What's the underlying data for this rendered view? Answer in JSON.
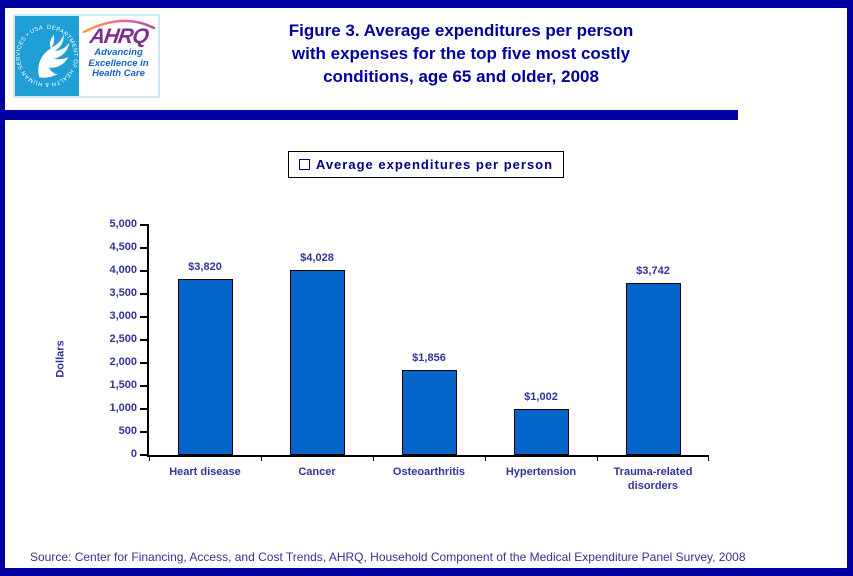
{
  "colors": {
    "frame_navy": "#0000a0",
    "title_blue": "#0000a0",
    "bar_blue": "#0565c8",
    "axis_text_navy": "#333399",
    "legend_text_navy": "#000080",
    "hhs_blue": "#1f9fd5",
    "ahrq_purple": "#7d2e8d",
    "ahrq_tagline_blue": "#1464c8"
  },
  "header": {
    "title_lines": [
      "Figure 3. Average expenditures per person",
      "with expenses for the top five most costly",
      "conditions, age 65 and older, 2008"
    ],
    "logo": {
      "hhs_ring_text": "DEPARTMENT OF HEALTH & HUMAN SERVICES • USA",
      "ahrq_wordmark": "AHRQ",
      "tagline_lines": [
        "Advancing",
        "Excellence in",
        "Health Care"
      ]
    }
  },
  "chart_data": {
    "type": "bar",
    "title": "",
    "legend": [
      "Average expenditures per person"
    ],
    "legend_position": "top-center",
    "categories": [
      "Heart disease",
      "Cancer",
      "Osteoarthritis",
      "Hypertension",
      "Trauma-related disorders"
    ],
    "values": [
      3820,
      4028,
      1856,
      1002,
      3742
    ],
    "value_labels": [
      "$3,820",
      "$4,028",
      "$1,856",
      "$1,002",
      "$3,742"
    ],
    "xlabel": "",
    "ylabel": "Dollars",
    "ylim": [
      0,
      5000
    ],
    "ytick_step": 500,
    "ytick_labels": [
      "0",
      "500",
      "1,000",
      "1,500",
      "2,000",
      "2,500",
      "3,000",
      "3,500",
      "4,000",
      "4,500",
      "5,000"
    ],
    "grid": false,
    "bar_color": "#0565c8"
  },
  "footer": {
    "source": "Source: Center for Financing, Access, and Cost Trends, AHRQ, Household Component of the Medical Expenditure Panel Survey, 2008"
  }
}
